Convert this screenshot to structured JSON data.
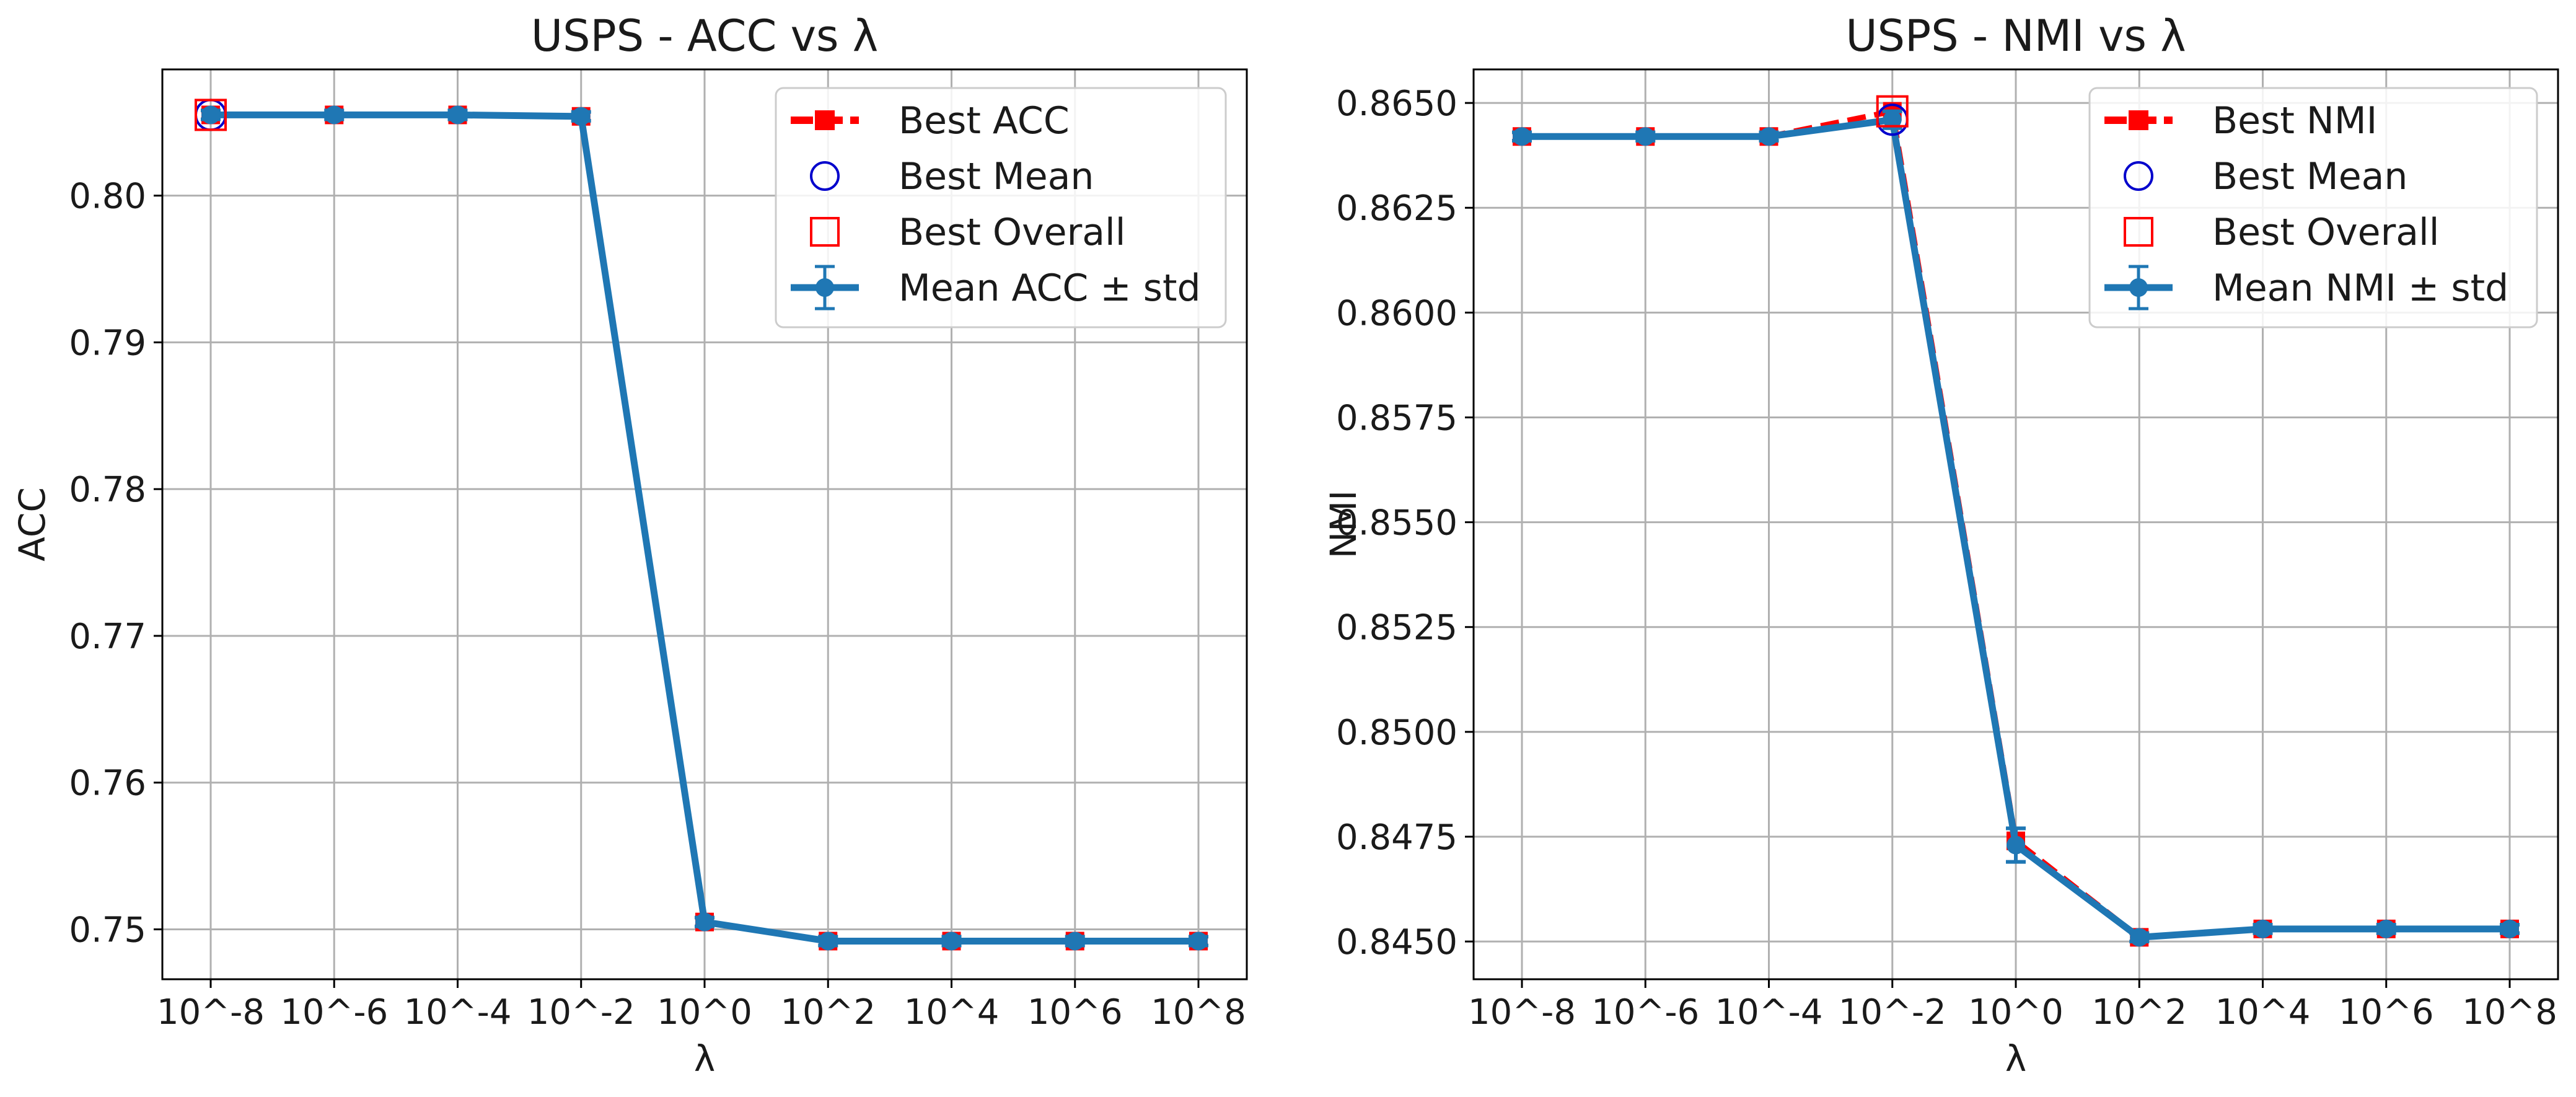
{
  "chart_data": [
    {
      "type": "line",
      "title": "USPS - ACC vs λ",
      "xlabel": "λ",
      "ylabel": "ACC",
      "x_ticks": [
        "10^-8",
        "10^-6",
        "10^-4",
        "10^-2",
        "10^0",
        "10^2",
        "10^4",
        "10^6",
        "10^8"
      ],
      "ylim": [
        0.7466,
        0.8086
      ],
      "y_ticks": [
        0.75,
        0.76,
        0.77,
        0.78,
        0.79,
        0.8
      ],
      "y_tick_labels": [
        "0.75",
        "0.76",
        "0.77",
        "0.78",
        "0.79",
        "0.80"
      ],
      "grid": true,
      "legend_position": "top-right",
      "series": [
        {
          "name": "Best ACC",
          "style": "dashed-square",
          "color": "#ff0000",
          "values": [
            0.8055,
            0.8055,
            0.8055,
            0.8054,
            0.7505,
            0.7492,
            0.7492,
            0.7492,
            0.7492
          ]
        },
        {
          "name": "Mean ACC ± std",
          "style": "errorbar",
          "color": "#1f77b4",
          "values": [
            0.8055,
            0.8055,
            0.8055,
            0.8054,
            0.7505,
            0.7492,
            0.7492,
            0.7492,
            0.7492
          ],
          "std": [
            0.0003,
            0.0003,
            0.0003,
            0.0003,
            0.0003,
            0.0003,
            0.0003,
            0.0003,
            0.0003
          ]
        }
      ],
      "best_mean": {
        "name": "Best Mean",
        "x_index": 0,
        "value": 0.8055,
        "color": "#0000cc"
      },
      "best_overall": {
        "name": "Best Overall",
        "x_index": 0,
        "value": 0.8055,
        "color": "#ff0000"
      }
    },
    {
      "type": "line",
      "title": "USPS - NMI vs λ",
      "xlabel": "λ",
      "ylabel": "NMI",
      "x_ticks": [
        "10^-8",
        "10^-6",
        "10^-4",
        "10^-2",
        "10^0",
        "10^2",
        "10^4",
        "10^6",
        "10^8"
      ],
      "ylim": [
        0.8441,
        0.8658
      ],
      "y_ticks": [
        0.845,
        0.8475,
        0.85,
        0.8525,
        0.855,
        0.8575,
        0.86,
        0.8625,
        0.865
      ],
      "y_tick_labels": [
        "0.8450",
        "0.8475",
        "0.8500",
        "0.8525",
        "0.8550",
        "0.8575",
        "0.8600",
        "0.8625",
        "0.8650"
      ],
      "grid": true,
      "legend_position": "top-right",
      "series": [
        {
          "name": "Best NMI",
          "style": "dashed-square",
          "color": "#ff0000",
          "values": [
            0.8642,
            0.8642,
            0.8642,
            0.8648,
            0.8474,
            0.8451,
            0.8453,
            0.8453,
            0.8453
          ]
        },
        {
          "name": "Mean NMI ± std",
          "style": "errorbar",
          "color": "#1f77b4",
          "values": [
            0.8642,
            0.8642,
            0.8642,
            0.8646,
            0.8473,
            0.8451,
            0.8453,
            0.8453,
            0.8453
          ],
          "std": [
            0.0001,
            0.0001,
            0.0001,
            0.0002,
            0.0004,
            0.0001,
            0.0001,
            0.0001,
            0.0001
          ]
        }
      ],
      "best_mean": {
        "name": "Best Mean",
        "x_index": 3,
        "value": 0.8646,
        "color": "#0000cc"
      },
      "best_overall": {
        "name": "Best Overall",
        "x_index": 3,
        "value": 0.8648,
        "color": "#ff0000"
      }
    }
  ]
}
